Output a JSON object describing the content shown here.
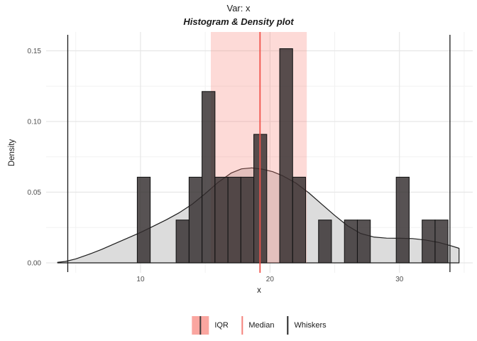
{
  "title": "Var: x",
  "subtitle": "Histogram & Density plot",
  "axes": {
    "x_title": "x",
    "y_title": "Density",
    "x_ticks": [
      {
        "value": 10,
        "label": "10"
      },
      {
        "value": 20,
        "label": "20"
      },
      {
        "value": 30,
        "label": "30"
      }
    ],
    "x_minor": [
      5,
      15,
      25,
      35
    ],
    "y_ticks": [
      {
        "value": 0,
        "label": "0.00"
      },
      {
        "value": 0.05,
        "label": "0.05"
      },
      {
        "value": 0.1,
        "label": "0.10"
      },
      {
        "value": 0.15,
        "label": "0.15"
      }
    ],
    "y_minor": [
      0.025,
      0.075,
      0.125
    ]
  },
  "legend": {
    "items": [
      {
        "label": "IQR",
        "key": "iqr-swatch"
      },
      {
        "label": "Median",
        "key": "median-line"
      },
      {
        "label": "Whiskers",
        "key": "whisker-line"
      }
    ]
  },
  "colors": {
    "iqr_fill": "rgba(248,118,109,0.27)",
    "iqr_legend_fill": "rgba(248,118,109,0.65)",
    "median_line": "#f0544c",
    "median_legend": "#f5827b",
    "whisker_line": "#1a1a1a",
    "bar_fill": "rgba(50,44,45,0.82)",
    "bar_stroke": "#141414",
    "density_fill": "#dcdcdc",
    "density_stroke": "#1c1c1c",
    "grid_major": "#e6e6e6",
    "grid_minor": "#f2f2f2",
    "tick_text": "#4d4d4d"
  },
  "chart_data": {
    "type": "bar",
    "subtype": "histogram-with-density",
    "title": "Var: x",
    "subtitle": "Histogram & Density plot",
    "xlabel": "x",
    "ylabel": "Density",
    "x_range": [
      2.71,
      35.66
    ],
    "y_range": [
      -0.00704,
      0.16332
    ],
    "binwidth": 1,
    "bins": [
      {
        "x0": 9.75,
        "x1": 10.75,
        "density": 0.0606
      },
      {
        "x0": 12.75,
        "x1": 13.75,
        "density": 0.0303
      },
      {
        "x0": 13.75,
        "x1": 14.75,
        "density": 0.0606
      },
      {
        "x0": 14.75,
        "x1": 15.75,
        "density": 0.1212
      },
      {
        "x0": 15.75,
        "x1": 16.75,
        "density": 0.0606
      },
      {
        "x0": 16.75,
        "x1": 17.75,
        "density": 0.0606
      },
      {
        "x0": 17.75,
        "x1": 18.75,
        "density": 0.0606
      },
      {
        "x0": 18.75,
        "x1": 19.75,
        "density": 0.0909
      },
      {
        "x0": 20.75,
        "x1": 21.75,
        "density": 0.1515
      },
      {
        "x0": 21.75,
        "x1": 22.75,
        "density": 0.0606
      },
      {
        "x0": 23.75,
        "x1": 24.75,
        "density": 0.0303
      },
      {
        "x0": 25.75,
        "x1": 26.75,
        "density": 0.0303
      },
      {
        "x0": 26.75,
        "x1": 27.75,
        "density": 0.0303
      },
      {
        "x0": 29.75,
        "x1": 30.75,
        "density": 0.0606
      },
      {
        "x0": 31.75,
        "x1": 32.75,
        "density": 0.0303
      },
      {
        "x0": 32.75,
        "x1": 33.75,
        "density": 0.0303
      }
    ],
    "density_curve": [
      [
        3.6,
        0.0004
      ],
      [
        4.2,
        0.001
      ],
      [
        5,
        0.0028
      ],
      [
        6,
        0.006
      ],
      [
        7,
        0.0095
      ],
      [
        8,
        0.0135
      ],
      [
        9,
        0.0175
      ],
      [
        10,
        0.0215
      ],
      [
        11,
        0.026
      ],
      [
        12,
        0.0305
      ],
      [
        13,
        0.0355
      ],
      [
        14,
        0.0415
      ],
      [
        15,
        0.049
      ],
      [
        16,
        0.057
      ],
      [
        17,
        0.0635
      ],
      [
        17.8,
        0.0665
      ],
      [
        18.6,
        0.0672
      ],
      [
        19.4,
        0.0663
      ],
      [
        20.2,
        0.0645
      ],
      [
        21,
        0.0615
      ],
      [
        22,
        0.0565
      ],
      [
        23,
        0.0495
      ],
      [
        24,
        0.0415
      ],
      [
        25,
        0.0335
      ],
      [
        26,
        0.0262
      ],
      [
        27,
        0.0208
      ],
      [
        28,
        0.0183
      ],
      [
        29,
        0.0175
      ],
      [
        30,
        0.0174
      ],
      [
        31,
        0.0172
      ],
      [
        32,
        0.0162
      ],
      [
        33,
        0.0145
      ],
      [
        34,
        0.012
      ],
      [
        34.6,
        0.0103
      ]
    ],
    "median": 19.23,
    "iqr": [
      15.43,
      22.84
    ],
    "whiskers": [
      4.38,
      33.9
    ],
    "legend_entries": [
      "IQR",
      "Median",
      "Whiskers"
    ],
    "grid": true,
    "legend_position": "bottom"
  }
}
